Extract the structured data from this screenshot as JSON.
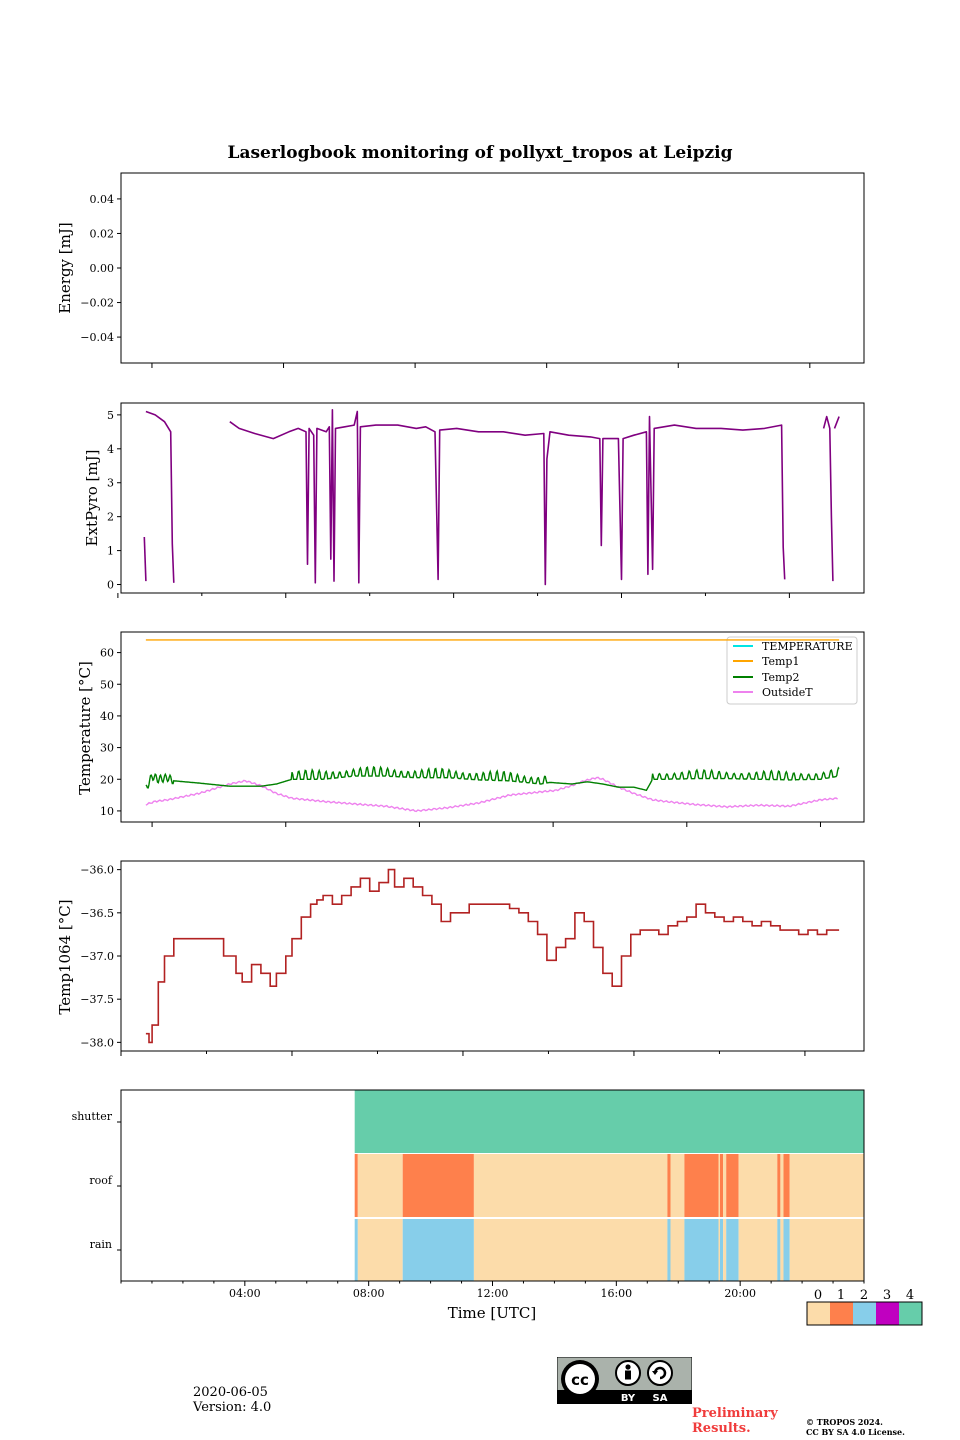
{
  "figure": {
    "title": "Laserlogbook monitoring of pollyxt_tropos at Leipzig",
    "date": "2020-06-05",
    "version": "Version: 4.0",
    "preliminary": [
      "Preliminary",
      "Results."
    ],
    "copyright": [
      "© TROPOS 2024.",
      "CC BY SA 4.0 License."
    ],
    "license_badge": [
      "BY",
      "SA"
    ]
  },
  "chart_data": [
    {
      "type": "line",
      "ylabel": "Energy [mJ]",
      "ylim": [
        -0.055,
        0.055
      ],
      "yticks": [
        -0.04,
        -0.02,
        0.0,
        0.02,
        0.04
      ],
      "ytick_labels": [
        "−0.04",
        "−0.02",
        "0.00",
        "0.02",
        "0.04"
      ],
      "series": []
    },
    {
      "type": "line",
      "ylabel": "ExtPyro [mJ]",
      "ylim": [
        -0.25,
        5.35
      ],
      "yticks": [
        0,
        1,
        2,
        3,
        4,
        5
      ],
      "ytick_labels": [
        "0",
        "1",
        "2",
        "3",
        "4",
        "5"
      ],
      "color": "#800080",
      "segments": [
        [
          [
            1.25,
            1.4
          ],
          [
            1.3,
            0.1
          ]
        ],
        [
          [
            1.3,
            5.1
          ],
          [
            1.6,
            5.0
          ],
          [
            1.9,
            4.8
          ],
          [
            2.1,
            4.5
          ],
          [
            2.15,
            1.2
          ],
          [
            2.2,
            0.05
          ]
        ],
        [
          [
            4.0,
            4.8
          ],
          [
            4.3,
            4.6
          ],
          [
            4.8,
            4.45
          ],
          [
            5.4,
            4.3
          ],
          [
            5.9,
            4.5
          ],
          [
            6.2,
            4.6
          ],
          [
            6.45,
            4.5
          ],
          [
            6.5,
            0.6
          ],
          [
            6.55,
            4.6
          ],
          [
            6.7,
            4.4
          ],
          [
            6.75,
            0.05
          ],
          [
            6.8,
            4.6
          ],
          [
            7.1,
            4.5
          ],
          [
            7.2,
            4.65
          ],
          [
            7.25,
            0.75
          ],
          [
            7.3,
            5.15
          ],
          [
            7.35,
            0.1
          ],
          [
            7.4,
            4.6
          ],
          [
            7.7,
            4.65
          ],
          [
            8.0,
            4.7
          ],
          [
            8.1,
            5.1
          ],
          [
            8.15,
            0.05
          ],
          [
            8.2,
            4.65
          ],
          [
            8.7,
            4.7
          ],
          [
            9.4,
            4.7
          ],
          [
            10.0,
            4.6
          ],
          [
            10.3,
            4.65
          ],
          [
            10.6,
            4.5
          ],
          [
            10.7,
            0.15
          ],
          [
            10.75,
            4.55
          ],
          [
            11.3,
            4.6
          ],
          [
            12.0,
            4.5
          ],
          [
            12.8,
            4.5
          ],
          [
            13.5,
            4.4
          ],
          [
            14.1,
            4.45
          ],
          [
            14.15,
            0.0
          ],
          [
            14.2,
            3.7
          ],
          [
            14.3,
            4.5
          ],
          [
            14.9,
            4.4
          ],
          [
            15.6,
            4.35
          ],
          [
            15.9,
            4.3
          ],
          [
            15.95,
            1.15
          ],
          [
            16.0,
            4.3
          ],
          [
            16.5,
            4.3
          ],
          [
            16.6,
            0.15
          ],
          [
            16.65,
            4.3
          ],
          [
            17.0,
            4.4
          ],
          [
            17.4,
            4.5
          ],
          [
            17.45,
            0.3
          ],
          [
            17.5,
            4.95
          ],
          [
            17.6,
            0.45
          ],
          [
            17.65,
            4.6
          ],
          [
            18.3,
            4.7
          ],
          [
            19.0,
            4.6
          ],
          [
            19.8,
            4.6
          ],
          [
            20.5,
            4.55
          ],
          [
            21.2,
            4.6
          ],
          [
            21.75,
            4.7
          ],
          [
            21.8,
            1.1
          ],
          [
            21.85,
            0.15
          ]
        ],
        [
          [
            23.1,
            4.6
          ],
          [
            23.2,
            4.95
          ],
          [
            23.3,
            4.6
          ],
          [
            23.35,
            2.0
          ],
          [
            23.4,
            0.1
          ]
        ],
        [
          [
            23.45,
            4.6
          ],
          [
            23.6,
            4.95
          ]
        ]
      ]
    },
    {
      "type": "line",
      "ylabel": "Temperature [°C]",
      "ylim": [
        6.5,
        66.5
      ],
      "yticks": [
        10,
        20,
        30,
        40,
        50,
        60
      ],
      "ytick_labels": [
        "10",
        "20",
        "30",
        "40",
        "50",
        "60"
      ],
      "legend": [
        "TEMPERATURE",
        "Temp1",
        "Temp2",
        "OutsideT"
      ],
      "legend_colors": [
        "#00e5e5",
        "#ffa500",
        "#008000",
        "#ee82ee"
      ],
      "series": [
        {
          "name": "Temp1",
          "color": "#ffa500",
          "x": [
            1.3,
            23.6
          ],
          "y": [
            64,
            64
          ]
        },
        {
          "name": "Temp2",
          "color": "#008000",
          "x": [
            1.3,
            1.5,
            1.7,
            2.0,
            2.2,
            3.0,
            4.0,
            5.0,
            5.5,
            6.0,
            7.0,
            8.0,
            9.0,
            10.0,
            11.0,
            12.0,
            13.0,
            14.0,
            14.3,
            15.0,
            15.5,
            16.0,
            16.5,
            17.0,
            17.4,
            17.6,
            18.0,
            19.0,
            20.0,
            21.0,
            22.0,
            23.0,
            23.6
          ],
          "y": [
            17,
            21,
            20,
            20.5,
            19.5,
            18.8,
            17.8,
            17.8,
            18.5,
            20,
            20,
            21,
            21,
            20.5,
            20.5,
            19.8,
            19.5,
            18.5,
            19.0,
            18.5,
            19.2,
            18.5,
            17.5,
            17.5,
            16.5,
            20,
            20,
            20.2,
            20.2,
            20,
            19.8,
            20,
            21
          ],
          "osc_from": 6.0,
          "osc_to": 14.3,
          "osc_amp": 3.0,
          "osc2_from": 17.6,
          "osc2_to": 23.6,
          "osc2_amp": 2.8
        },
        {
          "name": "OutsideT",
          "color": "#ee82ee",
          "x": [
            1.3,
            1.6,
            2.0,
            3.0,
            4.0,
            4.5,
            5.0,
            5.5,
            6.0,
            7.0,
            8.0,
            9.0,
            10.0,
            11.0,
            12.0,
            13.0,
            14.0,
            14.5,
            15.0,
            15.4,
            15.8,
            16.0,
            16.5,
            17.0,
            17.6,
            18.0,
            19.0,
            20.0,
            21.0,
            22.0,
            22.5,
            23.0,
            23.6
          ],
          "y": [
            12,
            13.0,
            13.5,
            15.5,
            18.5,
            19.5,
            18.0,
            15.5,
            14.0,
            13.0,
            12.2,
            11.5,
            10.0,
            11.0,
            12.5,
            15.0,
            16.0,
            16.5,
            18.0,
            19.5,
            20.5,
            20.0,
            17.5,
            15.5,
            13.5,
            13.0,
            12.0,
            11.3,
            11.8,
            11.5,
            12.5,
            13.5,
            14.0
          ]
        }
      ]
    },
    {
      "type": "line",
      "ylabel": "Temp1064 [°C]",
      "ylim": [
        -38.1,
        -35.9
      ],
      "yticks": [
        -38.0,
        -37.5,
        -37.0,
        -36.5,
        -36.0
      ],
      "ytick_labels": [
        "−38.0",
        "−37.5",
        "−37.0",
        "−36.5",
        "−36.0"
      ],
      "color": "#b22222",
      "x": [
        1.3,
        1.4,
        1.5,
        1.7,
        1.9,
        2.2,
        2.4,
        3.8,
        4.2,
        4.4,
        4.7,
        5.0,
        5.3,
        5.5,
        5.8,
        6.0,
        6.3,
        6.6,
        6.8,
        7.0,
        7.3,
        7.6,
        7.9,
        8.2,
        8.5,
        8.8,
        9.1,
        9.3,
        9.6,
        9.9,
        10.2,
        10.5,
        10.8,
        11.1,
        11.4,
        11.7,
        12.0,
        12.5,
        13.0,
        13.3,
        13.6,
        13.9,
        14.2,
        14.5,
        14.8,
        15.1,
        15.4,
        15.7,
        16.0,
        16.3,
        16.6,
        16.9,
        17.2,
        17.5,
        17.8,
        18.1,
        18.4,
        18.7,
        19.0,
        19.3,
        19.6,
        19.9,
        20.2,
        20.5,
        20.8,
        21.1,
        21.4,
        21.7,
        22.0,
        22.3,
        22.6,
        22.9,
        23.2,
        23.6
      ],
      "y": [
        -37.9,
        -38.0,
        -37.8,
        -37.3,
        -37.0,
        -36.8,
        -36.8,
        -37.0,
        -37.2,
        -37.3,
        -37.1,
        -37.2,
        -37.35,
        -37.2,
        -37.0,
        -36.8,
        -36.55,
        -36.4,
        -36.35,
        -36.3,
        -36.4,
        -36.3,
        -36.2,
        -36.1,
        -36.25,
        -36.15,
        -36.0,
        -36.2,
        -36.1,
        -36.2,
        -36.3,
        -36.4,
        -36.6,
        -36.5,
        -36.5,
        -36.4,
        -36.4,
        -36.4,
        -36.45,
        -36.5,
        -36.6,
        -36.75,
        -37.05,
        -36.9,
        -36.8,
        -36.5,
        -36.6,
        -36.9,
        -37.2,
        -37.35,
        -37.0,
        -36.75,
        -36.7,
        -36.7,
        -36.75,
        -36.65,
        -36.6,
        -36.55,
        -36.4,
        -36.5,
        -36.55,
        -36.6,
        -36.55,
        -36.6,
        -36.65,
        -36.6,
        -36.65,
        -36.7,
        -36.7,
        -36.75,
        -36.7,
        -36.75,
        -36.7,
        -36.7
      ]
    },
    {
      "type": "heatmap",
      "xlabel": "Time [UTC]",
      "xlim": [
        0,
        24
      ],
      "xticks": [
        4,
        8,
        12,
        16,
        20
      ],
      "xtick_labels": [
        "04:00",
        "08:00",
        "12:00",
        "16:00",
        "20:00"
      ],
      "rows": [
        "shutter",
        "roof",
        "rain"
      ],
      "categories": [
        "0",
        "1",
        "2",
        "3",
        "4"
      ],
      "category_colors": [
        "#fcdcaa",
        "#fe804c",
        "#87ceea",
        "#c000c0",
        "#66cdaa"
      ],
      "data_start": 7.55,
      "shutter": [
        [
          7.55,
          24,
          4
        ]
      ],
      "roof": [
        [
          7.55,
          7.65,
          1
        ],
        [
          7.65,
          9.1,
          0
        ],
        [
          9.1,
          11.4,
          1
        ],
        [
          11.4,
          17.65,
          0
        ],
        [
          17.65,
          17.75,
          1
        ],
        [
          17.75,
          18.2,
          0
        ],
        [
          18.2,
          19.3,
          1
        ],
        [
          19.3,
          19.35,
          0
        ],
        [
          19.35,
          19.45,
          1
        ],
        [
          19.45,
          19.55,
          0
        ],
        [
          19.55,
          19.95,
          1
        ],
        [
          19.95,
          21.2,
          0
        ],
        [
          21.2,
          21.3,
          1
        ],
        [
          21.3,
          21.4,
          0
        ],
        [
          21.4,
          21.6,
          1
        ],
        [
          21.6,
          24,
          0
        ]
      ],
      "rain": [
        [
          7.55,
          7.65,
          2
        ],
        [
          7.65,
          9.1,
          0
        ],
        [
          9.1,
          11.4,
          2
        ],
        [
          11.4,
          17.65,
          0
        ],
        [
          17.65,
          17.75,
          2
        ],
        [
          17.75,
          18.2,
          0
        ],
        [
          18.2,
          19.3,
          2
        ],
        [
          19.3,
          19.35,
          0
        ],
        [
          19.35,
          19.45,
          2
        ],
        [
          19.45,
          19.55,
          0
        ],
        [
          19.55,
          19.95,
          2
        ],
        [
          19.95,
          21.2,
          0
        ],
        [
          21.2,
          21.3,
          2
        ],
        [
          21.3,
          21.4,
          0
        ],
        [
          21.4,
          21.6,
          2
        ],
        [
          21.6,
          24,
          0
        ]
      ]
    }
  ],
  "panel_xticks": [
    [
      1.0,
      5.25,
      9.5,
      13.75,
      18.0,
      22.25
    ],
    [
      0.4,
      3.1,
      5.8,
      8.5,
      11.2,
      13.9,
      16.6,
      19.3,
      22.0
    ],
    [
      1.5,
      5.8,
      10.1,
      14.4,
      18.7,
      23.0
    ],
    [
      0.5,
      3.25,
      6.0,
      8.75,
      11.5,
      14.25,
      17.0,
      19.75,
      22.5
    ]
  ]
}
